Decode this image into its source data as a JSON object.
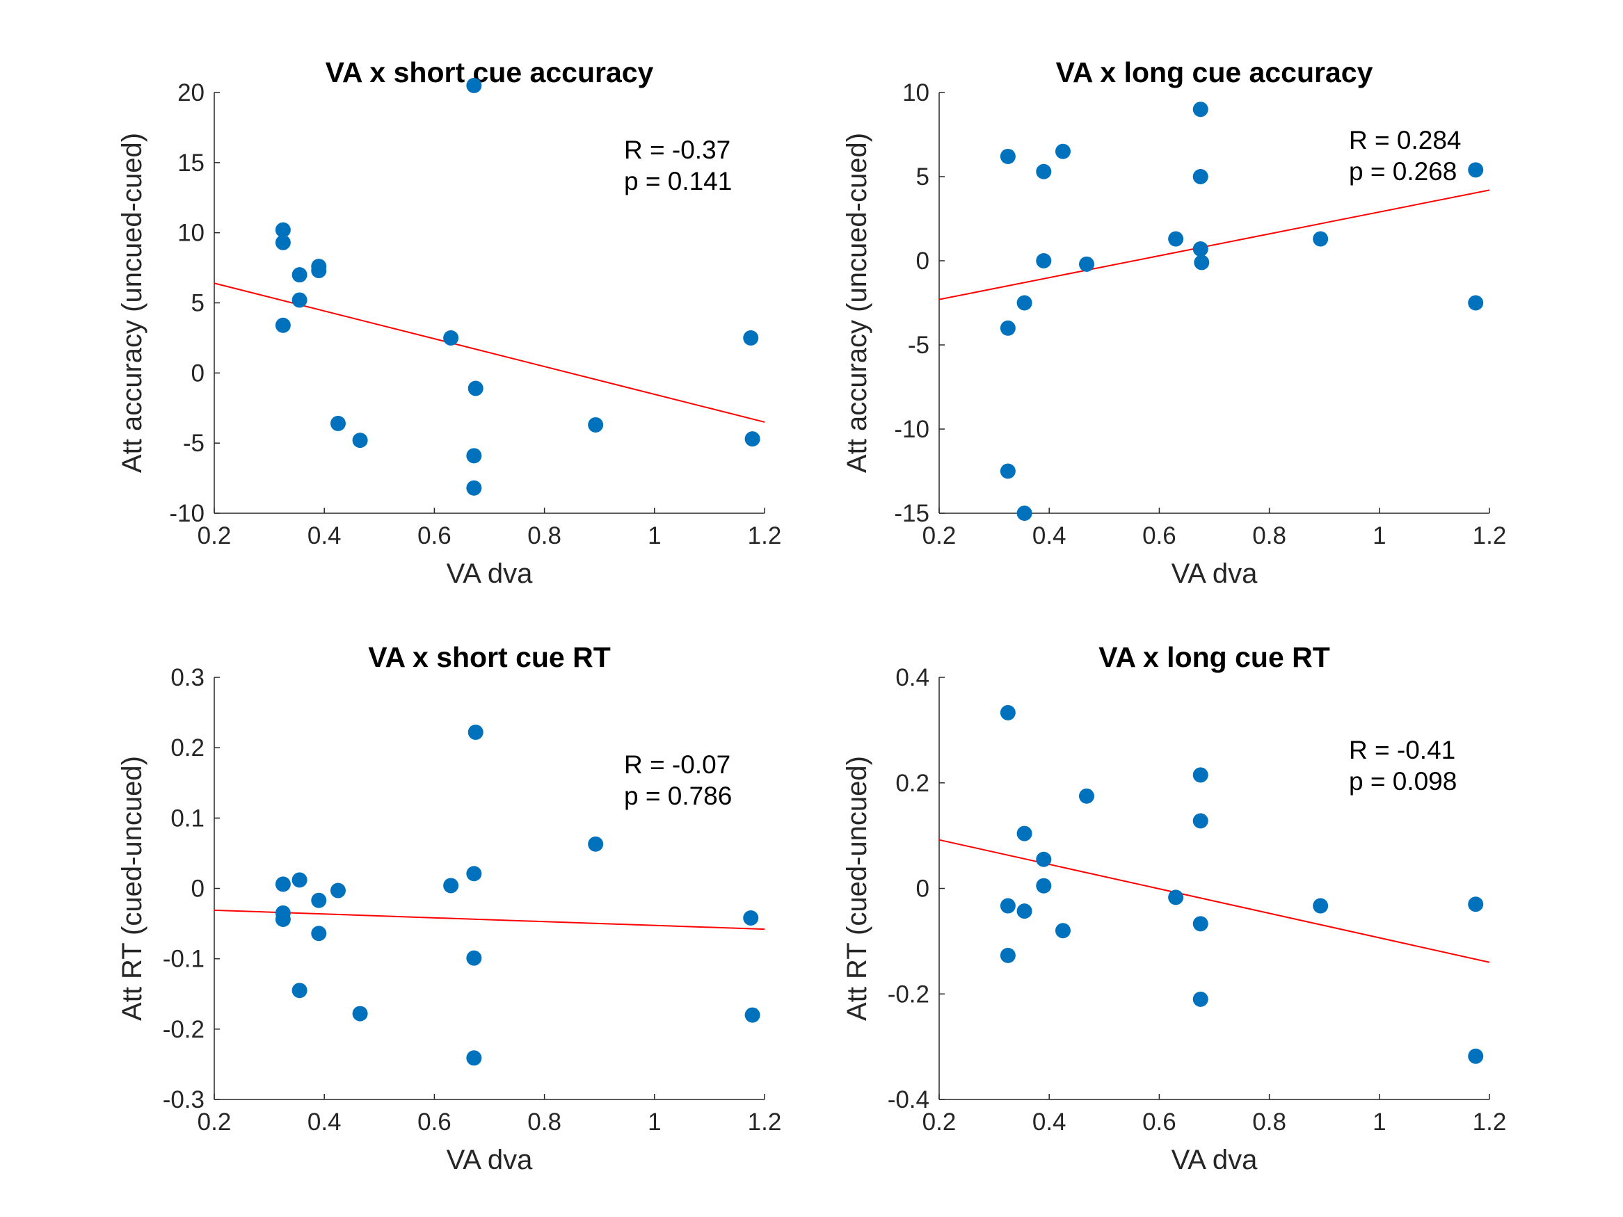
{
  "chart_data": [
    {
      "type": "scatter",
      "title": "VA x short cue accuracy",
      "xlabel": "VA dva",
      "ylabel": "Att accuracy (uncued-cued)",
      "xlim": [
        0.2,
        1.2
      ],
      "ylim": [
        -10,
        20
      ],
      "xticks": [
        0.2,
        0.4,
        0.6,
        0.8,
        1,
        1.2
      ],
      "xtick_labels": [
        "0.2",
        "0.4",
        "0.6",
        "0.8",
        "1",
        "1.2"
      ],
      "yticks": [
        -10,
        -5,
        0,
        5,
        10,
        15,
        20
      ],
      "ytick_labels": [
        "-10",
        "-5",
        "0",
        "5",
        "10",
        "15",
        "20"
      ],
      "stats": [
        "R = -0.37",
        "p = 0.141"
      ],
      "point_color": "#0072BD",
      "fit_color": "#ff0000",
      "fit_line": {
        "x": [
          0.2,
          1.2
        ],
        "y": [
          6.4,
          -3.5
        ]
      },
      "points": [
        {
          "x": 0.325,
          "y": 10.2
        },
        {
          "x": 0.325,
          "y": 9.3
        },
        {
          "x": 0.325,
          "y": 3.4
        },
        {
          "x": 0.355,
          "y": 7.0
        },
        {
          "x": 0.355,
          "y": 5.2
        },
        {
          "x": 0.39,
          "y": 7.6
        },
        {
          "x": 0.39,
          "y": 7.3
        },
        {
          "x": 0.425,
          "y": -3.6
        },
        {
          "x": 0.465,
          "y": -4.8
        },
        {
          "x": 0.63,
          "y": 2.5
        },
        {
          "x": 0.672,
          "y": 20.5
        },
        {
          "x": 0.675,
          "y": -1.1
        },
        {
          "x": 0.672,
          "y": -5.9
        },
        {
          "x": 0.672,
          "y": -8.2
        },
        {
          "x": 0.893,
          "y": -3.7
        },
        {
          "x": 1.175,
          "y": 2.5
        },
        {
          "x": 1.178,
          "y": -4.7
        }
      ]
    },
    {
      "type": "scatter",
      "title": "VA x long cue accuracy",
      "xlabel": "VA dva",
      "ylabel": "Att accuracy (uncued-cued)",
      "xlim": [
        0.2,
        1.2
      ],
      "ylim": [
        -15,
        10
      ],
      "xticks": [
        0.2,
        0.4,
        0.6,
        0.8,
        1,
        1.2
      ],
      "xtick_labels": [
        "0.2",
        "0.4",
        "0.6",
        "0.8",
        "1",
        "1.2"
      ],
      "yticks": [
        -15,
        -10,
        -5,
        0,
        5,
        10
      ],
      "ytick_labels": [
        "-15",
        "-10",
        "-5",
        "0",
        "5",
        "10"
      ],
      "stats": [
        "R = 0.284",
        "p = 0.268"
      ],
      "point_color": "#0072BD",
      "fit_color": "#ff0000",
      "fit_line": {
        "x": [
          0.2,
          1.2
        ],
        "y": [
          -2.3,
          4.2
        ]
      },
      "points": [
        {
          "x": 0.325,
          "y": 6.2
        },
        {
          "x": 0.325,
          "y": -4.0
        },
        {
          "x": 0.325,
          "y": -12.5
        },
        {
          "x": 0.355,
          "y": -2.5
        },
        {
          "x": 0.355,
          "y": -15.0
        },
        {
          "x": 0.39,
          "y": 5.3
        },
        {
          "x": 0.39,
          "y": 0.0
        },
        {
          "x": 0.425,
          "y": 6.5
        },
        {
          "x": 0.468,
          "y": -0.2
        },
        {
          "x": 0.63,
          "y": 1.3
        },
        {
          "x": 0.675,
          "y": 9.0
        },
        {
          "x": 0.675,
          "y": 5.0
        },
        {
          "x": 0.675,
          "y": 0.7
        },
        {
          "x": 0.677,
          "y": -0.1
        },
        {
          "x": 0.893,
          "y": 1.3
        },
        {
          "x": 1.175,
          "y": 5.4
        },
        {
          "x": 1.175,
          "y": -2.5
        }
      ]
    },
    {
      "type": "scatter",
      "title": "VA x short cue RT",
      "xlabel": "VA dva",
      "ylabel": "Att RT (cued-uncued)",
      "xlim": [
        0.2,
        1.2
      ],
      "ylim": [
        -0.3,
        0.3
      ],
      "xticks": [
        0.2,
        0.4,
        0.6,
        0.8,
        1,
        1.2
      ],
      "xtick_labels": [
        "0.2",
        "0.4",
        "0.6",
        "0.8",
        "1",
        "1.2"
      ],
      "yticks": [
        -0.3,
        -0.2,
        -0.1,
        0,
        0.1,
        0.2,
        0.3
      ],
      "ytick_labels": [
        "-0.3",
        "-0.2",
        "-0.1",
        "0",
        "0.1",
        "0.2",
        "0.3"
      ],
      "stats": [
        "R = -0.07",
        "p = 0.786"
      ],
      "point_color": "#0072BD",
      "fit_color": "#ff0000",
      "fit_line": {
        "x": [
          0.2,
          1.2
        ],
        "y": [
          -0.031,
          -0.058
        ]
      },
      "points": [
        {
          "x": 0.325,
          "y": 0.006
        },
        {
          "x": 0.325,
          "y": -0.035
        },
        {
          "x": 0.325,
          "y": -0.044
        },
        {
          "x": 0.355,
          "y": 0.012
        },
        {
          "x": 0.355,
          "y": -0.145
        },
        {
          "x": 0.39,
          "y": -0.017
        },
        {
          "x": 0.39,
          "y": -0.064
        },
        {
          "x": 0.425,
          "y": -0.003
        },
        {
          "x": 0.465,
          "y": -0.178
        },
        {
          "x": 0.63,
          "y": 0.004
        },
        {
          "x": 0.675,
          "y": 0.222
        },
        {
          "x": 0.672,
          "y": 0.021
        },
        {
          "x": 0.672,
          "y": -0.099
        },
        {
          "x": 0.672,
          "y": -0.241
        },
        {
          "x": 0.893,
          "y": 0.063
        },
        {
          "x": 1.175,
          "y": -0.042
        },
        {
          "x": 1.178,
          "y": -0.18
        }
      ]
    },
    {
      "type": "scatter",
      "title": "VA x long cue RT",
      "xlabel": "VA dva",
      "ylabel": "Att RT (cued-uncued)",
      "xlim": [
        0.2,
        1.2
      ],
      "ylim": [
        -0.4,
        0.4
      ],
      "xticks": [
        0.2,
        0.4,
        0.6,
        0.8,
        1,
        1.2
      ],
      "xtick_labels": [
        "0.2",
        "0.4",
        "0.6",
        "0.8",
        "1",
        "1.2"
      ],
      "yticks": [
        -0.4,
        -0.2,
        0,
        0.2,
        0.4
      ],
      "ytick_labels": [
        "-0.4",
        "-0.2",
        "0",
        "0.2",
        "0.4"
      ],
      "stats": [
        "R = -0.41",
        "p = 0.098"
      ],
      "point_color": "#0072BD",
      "fit_color": "#ff0000",
      "fit_line": {
        "x": [
          0.2,
          1.2
        ],
        "y": [
          0.092,
          -0.14
        ]
      },
      "points": [
        {
          "x": 0.325,
          "y": 0.333
        },
        {
          "x": 0.325,
          "y": -0.033
        },
        {
          "x": 0.325,
          "y": -0.127
        },
        {
          "x": 0.355,
          "y": 0.104
        },
        {
          "x": 0.355,
          "y": -0.043
        },
        {
          "x": 0.39,
          "y": 0.055
        },
        {
          "x": 0.39,
          "y": 0.005
        },
        {
          "x": 0.425,
          "y": -0.08
        },
        {
          "x": 0.468,
          "y": 0.175
        },
        {
          "x": 0.63,
          "y": -0.017
        },
        {
          "x": 0.675,
          "y": 0.215
        },
        {
          "x": 0.675,
          "y": 0.128
        },
        {
          "x": 0.675,
          "y": -0.067
        },
        {
          "x": 0.675,
          "y": -0.21
        },
        {
          "x": 0.893,
          "y": -0.033
        },
        {
          "x": 1.175,
          "y": -0.03
        },
        {
          "x": 1.175,
          "y": -0.318
        }
      ]
    }
  ]
}
